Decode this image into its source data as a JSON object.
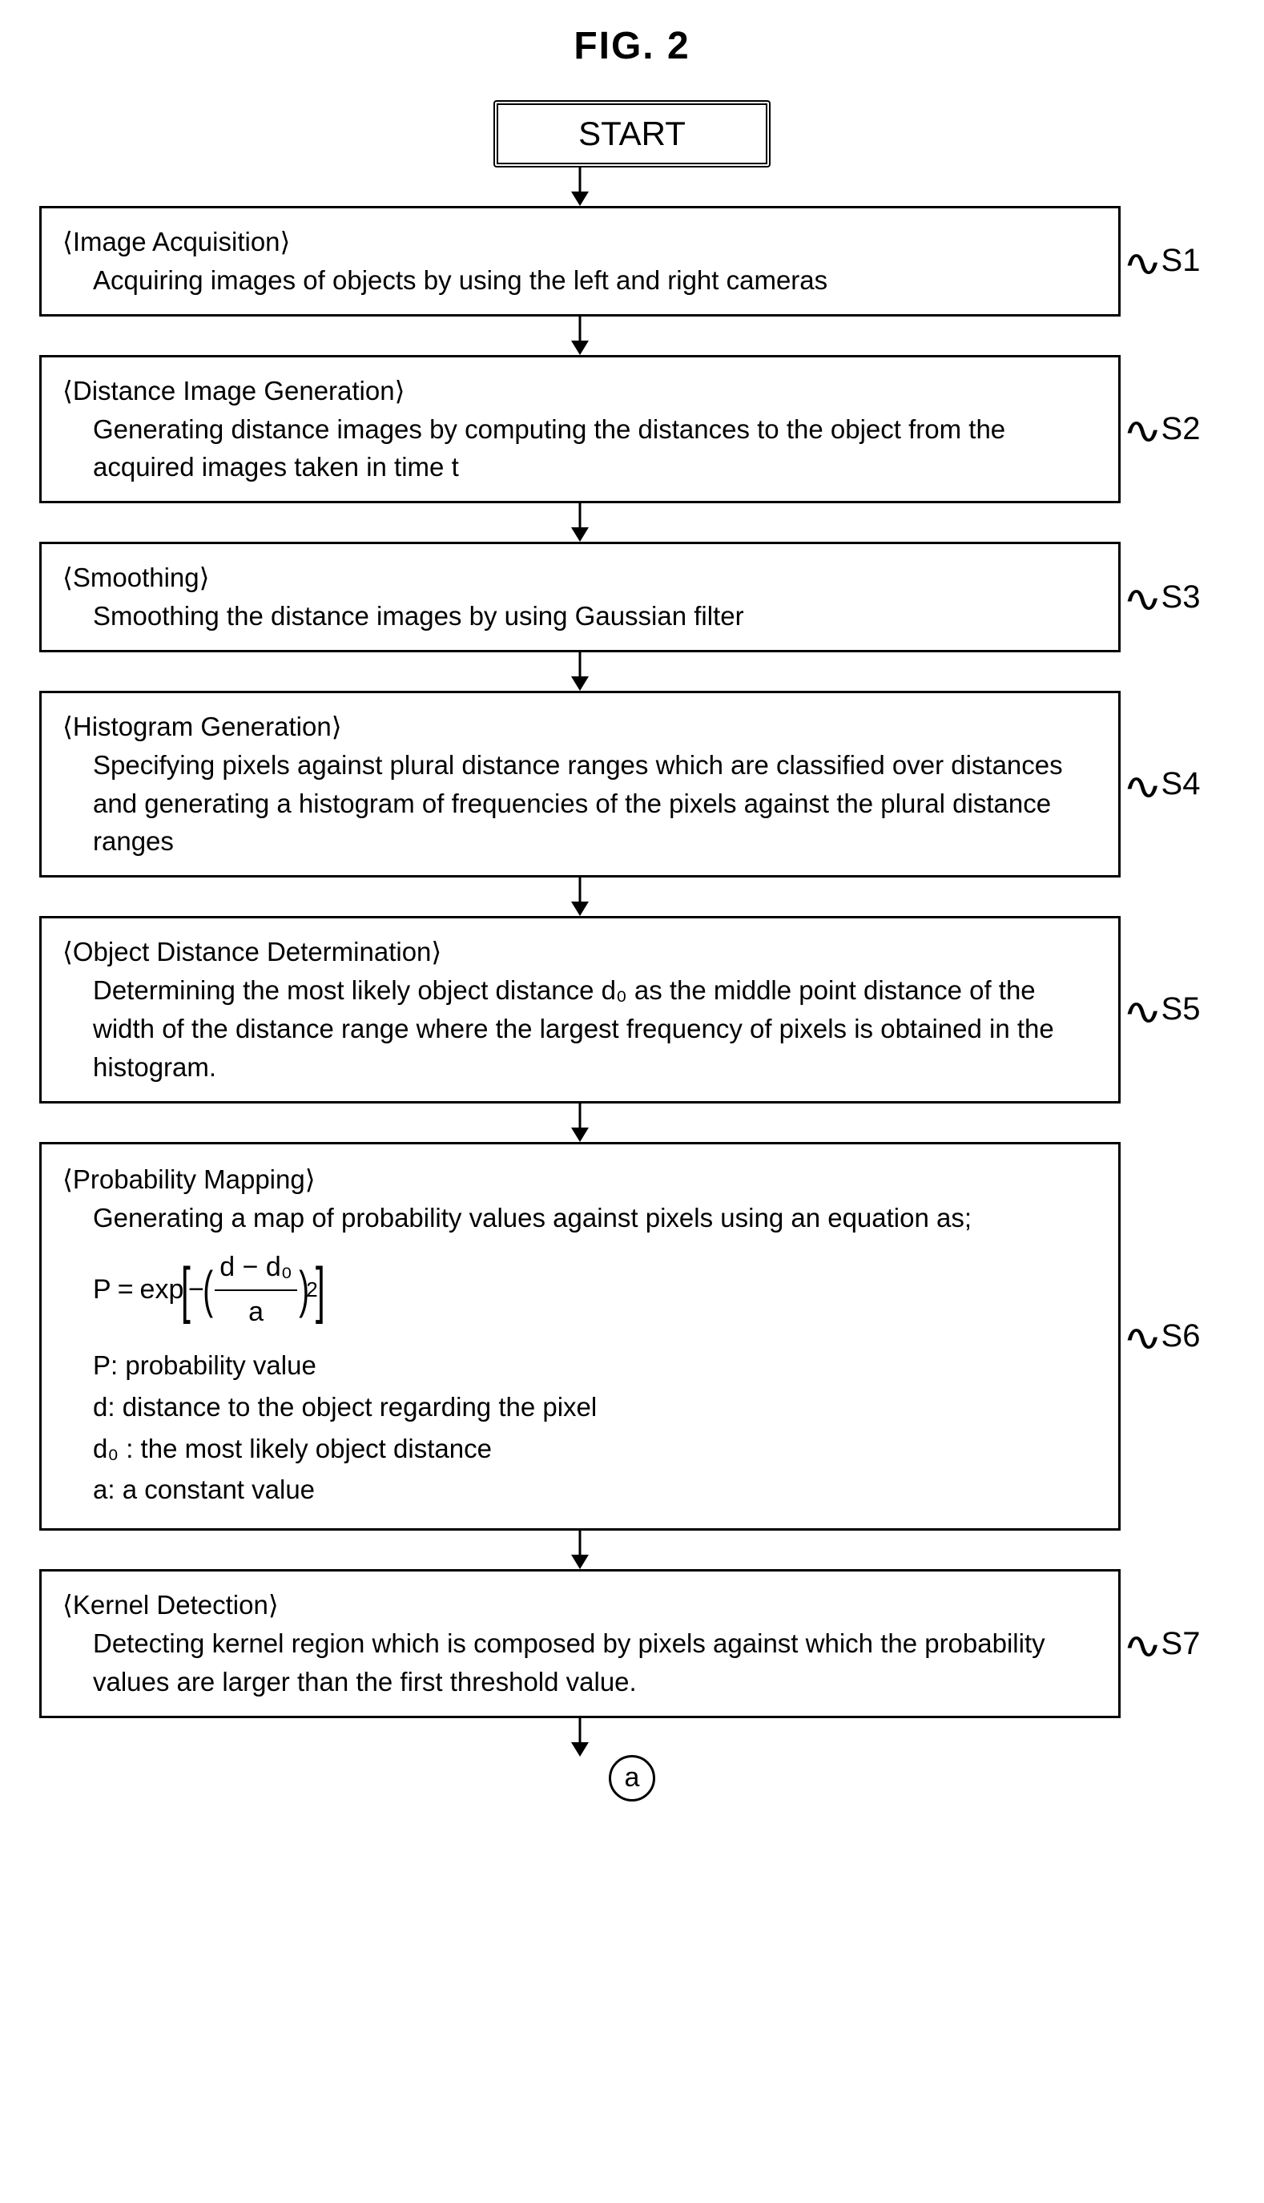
{
  "figure_title": "FIG. 2",
  "start_label": "START",
  "arrow": {
    "stroke": "#000000",
    "stroke_width": 3,
    "height": 48,
    "head_w": 22,
    "head_h": 18
  },
  "steps": [
    {
      "id": "S1",
      "title": "⟨Image Acquisition⟩",
      "body": "Acquiring images of objects by using the left and right cameras"
    },
    {
      "id": "S2",
      "title": "⟨Distance Image Generation⟩",
      "body": "Generating distance images by computing the distances to the object from the acquired images taken in time t"
    },
    {
      "id": "S3",
      "title": "⟨Smoothing⟩",
      "body": "Smoothing the distance images by using Gaussian filter"
    },
    {
      "id": "S4",
      "title": "⟨Histogram Generation⟩",
      "body": "Specifying pixels against plural distance ranges which are classified over distances and generating a histogram of frequencies of the pixels against the plural distance ranges"
    },
    {
      "id": "S5",
      "title": "⟨Object Distance Determination⟩",
      "body": "Determining the most likely object distance d₀ as the middle point distance of the width of the distance range where the largest frequency of pixels is obtained in the histogram."
    },
    {
      "id": "S6",
      "title": "⟨Probability Mapping⟩",
      "body_lead": "Generating a map of probability values against pixels using an equation as;",
      "formula": {
        "P_label": "P",
        "exp_label": "exp",
        "num": "d − d₀",
        "den": "a",
        "exponent": "2"
      },
      "defs": [
        "P: probability value",
        "d: distance to the object regarding the pixel",
        "d₀ : the most likely object distance",
        "a: a constant value"
      ]
    },
    {
      "id": "S7",
      "title": "⟨Kernel Detection⟩",
      "body": "Detecting kernel region which is composed by pixels against which the probability values are larger than the first threshold value."
    }
  ],
  "connector_label": "a"
}
